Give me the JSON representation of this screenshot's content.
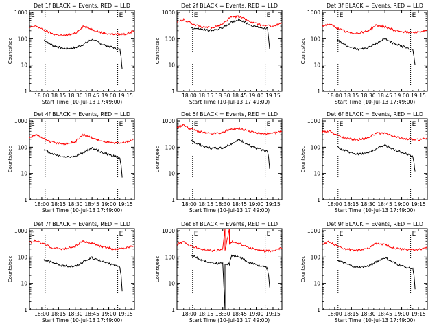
{
  "colors": {
    "events": "#000000",
    "lld": "#ff0000",
    "axis": "#000000",
    "background": "#ffffff"
  },
  "chart_data": [
    {
      "type": "line",
      "title": "Det 1f BLACK = Events, RED = LLD",
      "xlabel": "Start Time (10-Jul-13 17:49:00)",
      "ylabel": "Counts/sec",
      "yscale": "log",
      "ylim": [
        1,
        1200
      ],
      "xlim": [
        "17:49",
        "19:23"
      ],
      "x_ticks": [
        "18:00",
        "18:15",
        "18:30",
        "18:45",
        "19:00",
        "19:15"
      ],
      "y_ticks": [
        "1",
        "10",
        "100",
        "1000"
      ],
      "markers": [
        "E",
        "E"
      ],
      "vlines": [
        "17:49",
        "18:03",
        "19:08",
        "19:23"
      ],
      "series": [
        {
          "name": "BLACK = Events",
          "color": "black",
          "x": [
            "18:02",
            "18:10",
            "18:20",
            "18:30",
            "18:37",
            "18:45",
            "18:55",
            "19:05",
            "19:10",
            "19:11",
            "19:12"
          ],
          "y": [
            90,
            55,
            42,
            45,
            60,
            95,
            60,
            45,
            38,
            20,
            7
          ]
        },
        {
          "name": "RED = LLD",
          "color": "red",
          "x": [
            "17:49",
            "17:55",
            "18:00",
            "18:10",
            "18:20",
            "18:30",
            "18:37",
            "18:45",
            "18:55",
            "19:05",
            "19:15",
            "19:23"
          ],
          "y": [
            260,
            310,
            230,
            150,
            130,
            160,
            300,
            230,
            160,
            150,
            150,
            200
          ]
        }
      ]
    },
    {
      "type": "line",
      "title": "Det 2f BLACK = Events, RED = LLD",
      "xlabel": "Start Time (10-Jul-13 17:49:00)",
      "ylabel": "Counts/sec",
      "yscale": "log",
      "ylim": [
        1,
        1200
      ],
      "xlim": [
        "17:49",
        "19:23"
      ],
      "x_ticks": [
        "18:00",
        "18:15",
        "18:30",
        "18:45",
        "19:00",
        "19:15"
      ],
      "y_ticks": [
        "1",
        "10",
        "100",
        "1000"
      ],
      "markers": [
        "E",
        "E"
      ],
      "vlines": [
        "18:03",
        "19:08",
        "19:23"
      ],
      "series": [
        {
          "name": "BLACK = Events",
          "color": "black",
          "x": [
            "18:02",
            "18:10",
            "18:20",
            "18:30",
            "18:37",
            "18:45",
            "18:55",
            "19:05",
            "19:10",
            "19:11",
            "19:12"
          ],
          "y": [
            260,
            230,
            200,
            260,
            400,
            550,
            320,
            260,
            250,
            100,
            40
          ]
        },
        {
          "name": "RED = LLD",
          "color": "red",
          "x": [
            "17:49",
            "17:55",
            "18:00",
            "18:10",
            "18:20",
            "18:30",
            "18:37",
            "18:45",
            "18:55",
            "19:05",
            "19:15",
            "19:23"
          ],
          "y": [
            420,
            530,
            420,
            280,
            260,
            360,
            650,
            700,
            430,
            320,
            300,
            380
          ]
        }
      ]
    },
    {
      "type": "line",
      "title": "Det 3f BLACK = Events, RED = LLD",
      "xlabel": "Start Time (10-Jul-13 17:49:00)",
      "ylabel": "Counts/sec",
      "yscale": "log",
      "ylim": [
        1,
        1200
      ],
      "xlim": [
        "17:49",
        "19:23"
      ],
      "x_ticks": [
        "18:00",
        "18:15",
        "18:30",
        "18:45",
        "19:00",
        "19:15"
      ],
      "y_ticks": [
        "1",
        "10",
        "100",
        "1000"
      ],
      "markers": [
        "E",
        "E"
      ],
      "vlines": [
        "18:03",
        "19:08",
        "19:23"
      ],
      "series": [
        {
          "name": "BLACK = Events",
          "color": "black",
          "x": [
            "18:02",
            "18:10",
            "18:20",
            "18:30",
            "18:37",
            "18:45",
            "18:55",
            "19:05",
            "19:10",
            "19:11",
            "19:12"
          ],
          "y": [
            90,
            55,
            40,
            45,
            65,
            100,
            60,
            45,
            38,
            20,
            10
          ]
        },
        {
          "name": "RED = LLD",
          "color": "red",
          "x": [
            "17:49",
            "17:55",
            "18:00",
            "18:10",
            "18:20",
            "18:30",
            "18:37",
            "18:45",
            "18:55",
            "19:05",
            "19:15",
            "19:23"
          ],
          "y": [
            300,
            360,
            280,
            180,
            160,
            200,
            320,
            280,
            200,
            180,
            180,
            200
          ]
        }
      ]
    },
    {
      "type": "line",
      "title": "Det 4f BLACK = Events, RED = LLD",
      "xlabel": "Start Time (10-Jul-13 17:49:00)",
      "ylabel": "Counts/sec",
      "yscale": "log",
      "ylim": [
        1,
        1200
      ],
      "xlim": [
        "17:49",
        "19:23"
      ],
      "x_ticks": [
        "18:00",
        "18:15",
        "18:30",
        "18:45",
        "19:00",
        "19:15"
      ],
      "y_ticks": [
        "1",
        "10",
        "100",
        "1000"
      ],
      "markers": [
        "E",
        "E"
      ],
      "vlines": [
        "17:49",
        "18:03",
        "19:08",
        "19:23"
      ],
      "series": [
        {
          "name": "BLACK = Events",
          "color": "black",
          "x": [
            "18:02",
            "18:10",
            "18:20",
            "18:30",
            "18:37",
            "18:45",
            "18:55",
            "19:05",
            "19:10",
            "19:11",
            "19:12"
          ],
          "y": [
            80,
            55,
            42,
            45,
            60,
            95,
            60,
            45,
            38,
            20,
            7
          ]
        },
        {
          "name": "RED = LLD",
          "color": "red",
          "x": [
            "17:49",
            "17:55",
            "18:00",
            "18:10",
            "18:20",
            "18:30",
            "18:37",
            "18:45",
            "18:55",
            "19:05",
            "19:15",
            "19:23"
          ],
          "y": [
            230,
            300,
            220,
            150,
            130,
            160,
            300,
            230,
            160,
            140,
            150,
            200
          ]
        }
      ]
    },
    {
      "type": "line",
      "title": "Det 5f BLACK = Events, RED = LLD",
      "xlabel": "Start Time (10-Jul-13 17:49:00)",
      "ylabel": "Counts/sec",
      "yscale": "log",
      "ylim": [
        1,
        1200
      ],
      "xlim": [
        "17:49",
        "19:23"
      ],
      "x_ticks": [
        "18:00",
        "18:15",
        "18:30",
        "18:45",
        "19:00",
        "19:15"
      ],
      "y_ticks": [
        "1",
        "10",
        "100",
        "1000"
      ],
      "markers": [
        "E",
        "E"
      ],
      "vlines": [
        "18:03",
        "19:08",
        "19:23"
      ],
      "series": [
        {
          "name": "BLACK = Events",
          "color": "black",
          "x": [
            "18:02",
            "18:10",
            "18:20",
            "18:30",
            "18:37",
            "18:45",
            "18:55",
            "19:05",
            "19:10",
            "19:11",
            "19:12"
          ],
          "y": [
            170,
            120,
            90,
            95,
            130,
            190,
            110,
            80,
            70,
            40,
            15
          ]
        },
        {
          "name": "RED = LLD",
          "color": "red",
          "x": [
            "17:49",
            "17:55",
            "18:00",
            "18:10",
            "18:20",
            "18:30",
            "18:37",
            "18:45",
            "18:55",
            "19:05",
            "19:15",
            "19:23"
          ],
          "y": [
            550,
            700,
            520,
            380,
            320,
            360,
            480,
            500,
            380,
            320,
            330,
            400
          ]
        }
      ]
    },
    {
      "type": "line",
      "title": "Det 6f BLACK = Events, RED = LLD",
      "xlabel": "Start Time (10-Jul-13 17:49:00)",
      "ylabel": "Counts/sec",
      "yscale": "log",
      "ylim": [
        1,
        1200
      ],
      "xlim": [
        "17:49",
        "19:23"
      ],
      "x_ticks": [
        "18:00",
        "18:15",
        "18:30",
        "18:45",
        "19:00",
        "19:15"
      ],
      "y_ticks": [
        "1",
        "10",
        "100",
        "1000"
      ],
      "markers": [
        "E",
        "E"
      ],
      "vlines": [
        "18:03",
        "19:08",
        "19:23"
      ],
      "series": [
        {
          "name": "BLACK = Events",
          "color": "black",
          "x": [
            "18:02",
            "18:10",
            "18:20",
            "18:30",
            "18:37",
            "18:45",
            "18:55",
            "19:05",
            "19:10",
            "19:11",
            "19:12"
          ],
          "y": [
            100,
            70,
            55,
            60,
            85,
            120,
            75,
            55,
            45,
            25,
            12
          ]
        },
        {
          "name": "RED = LLD",
          "color": "red",
          "x": [
            "17:49",
            "17:55",
            "18:00",
            "18:10",
            "18:20",
            "18:30",
            "18:37",
            "18:45",
            "18:55",
            "19:05",
            "19:15",
            "19:23"
          ],
          "y": [
            380,
            420,
            320,
            220,
            190,
            230,
            340,
            330,
            240,
            200,
            190,
            230
          ]
        }
      ]
    },
    {
      "type": "line",
      "title": "Det 7f BLACK = Events, RED = LLD",
      "xlabel": "Start Time (10-Jul-13 17:49:00)",
      "ylabel": "Counts/sec",
      "yscale": "log",
      "ylim": [
        1,
        1200
      ],
      "xlim": [
        "17:49",
        "19:23"
      ],
      "x_ticks": [
        "18:00",
        "18:15",
        "18:30",
        "18:45",
        "19:00",
        "19:15"
      ],
      "y_ticks": [
        "1",
        "10",
        "100",
        "1000"
      ],
      "markers": [
        "E",
        "E"
      ],
      "vlines": [
        "17:49",
        "18:03",
        "19:08",
        "19:23"
      ],
      "series": [
        {
          "name": "BLACK = Events",
          "color": "black",
          "x": [
            "18:02",
            "18:10",
            "18:20",
            "18:30",
            "18:37",
            "18:45",
            "18:55",
            "19:05",
            "19:10",
            "19:11",
            "19:12"
          ],
          "y": [
            80,
            60,
            45,
            45,
            65,
            95,
            65,
            50,
            42,
            20,
            5
          ]
        },
        {
          "name": "RED = LLD",
          "color": "red",
          "x": [
            "17:49",
            "17:55",
            "18:00",
            "18:10",
            "18:20",
            "18:30",
            "18:37",
            "18:45",
            "18:55",
            "19:05",
            "19:15",
            "19:23"
          ],
          "y": [
            350,
            420,
            330,
            220,
            200,
            250,
            400,
            330,
            240,
            200,
            220,
            280
          ]
        }
      ]
    },
    {
      "type": "line",
      "title": "Det 8f BLACK = Events, RED = LLD",
      "xlabel": "Start Time (10-Jul-13 17:49:00)",
      "ylabel": "Counts/sec",
      "yscale": "log",
      "ylim": [
        1,
        1200
      ],
      "xlim": [
        "17:49",
        "19:23"
      ],
      "x_ticks": [
        "18:00",
        "18:15",
        "18:30",
        "18:45",
        "19:00",
        "19:15"
      ],
      "y_ticks": [
        "1",
        "10",
        "100",
        "1000"
      ],
      "markers": [
        "E",
        "E"
      ],
      "vlines": [
        "18:03",
        "19:08",
        "19:23"
      ],
      "series": [
        {
          "name": "BLACK = Events",
          "color": "black",
          "x": [
            "18:02",
            "18:10",
            "18:20",
            "18:30",
            "18:32",
            "18:32",
            "18:36",
            "18:38",
            "18:45",
            "18:55",
            "19:05",
            "19:10",
            "19:11",
            "19:12"
          ],
          "y": [
            120,
            80,
            60,
            55,
            1,
            55,
            55,
            120,
            95,
            60,
            45,
            38,
            20,
            7
          ]
        },
        {
          "name": "RED = LLD",
          "color": "red",
          "x": [
            "17:49",
            "17:55",
            "18:00",
            "18:10",
            "18:20",
            "18:30",
            "18:32",
            "18:32",
            "18:36",
            "18:36",
            "18:38",
            "18:45",
            "18:55",
            "19:05",
            "19:15",
            "19:23"
          ],
          "y": [
            300,
            380,
            280,
            200,
            170,
            200,
            1200,
            180,
            1200,
            300,
            380,
            320,
            220,
            170,
            170,
            220
          ]
        }
      ]
    },
    {
      "type": "line",
      "title": "Det 9f BLACK = Events, RED = LLD",
      "xlabel": "Start Time (10-Jul-13 17:49:00)",
      "ylabel": "Counts/sec",
      "yscale": "log",
      "ylim": [
        1,
        1200
      ],
      "xlim": [
        "17:49",
        "19:23"
      ],
      "x_ticks": [
        "18:00",
        "18:15",
        "18:30",
        "18:45",
        "19:00",
        "19:15"
      ],
      "y_ticks": [
        "1",
        "10",
        "100",
        "1000"
      ],
      "markers": [
        "E",
        "E"
      ],
      "vlines": [
        "18:03",
        "19:08",
        "19:23"
      ],
      "series": [
        {
          "name": "BLACK = Events",
          "color": "black",
          "x": [
            "18:02",
            "18:10",
            "18:20",
            "18:30",
            "18:37",
            "18:45",
            "18:55",
            "19:05",
            "19:10",
            "19:11",
            "19:12"
          ],
          "y": [
            80,
            55,
            40,
            45,
            65,
            95,
            55,
            40,
            35,
            20,
            6
          ]
        },
        {
          "name": "RED = LLD",
          "color": "red",
          "x": [
            "17:49",
            "17:55",
            "18:00",
            "18:10",
            "18:20",
            "18:30",
            "18:37",
            "18:45",
            "18:55",
            "19:05",
            "19:15",
            "19:23"
          ],
          "y": [
            320,
            380,
            290,
            200,
            180,
            210,
            330,
            290,
            210,
            190,
            190,
            230
          ]
        }
      ]
    }
  ]
}
